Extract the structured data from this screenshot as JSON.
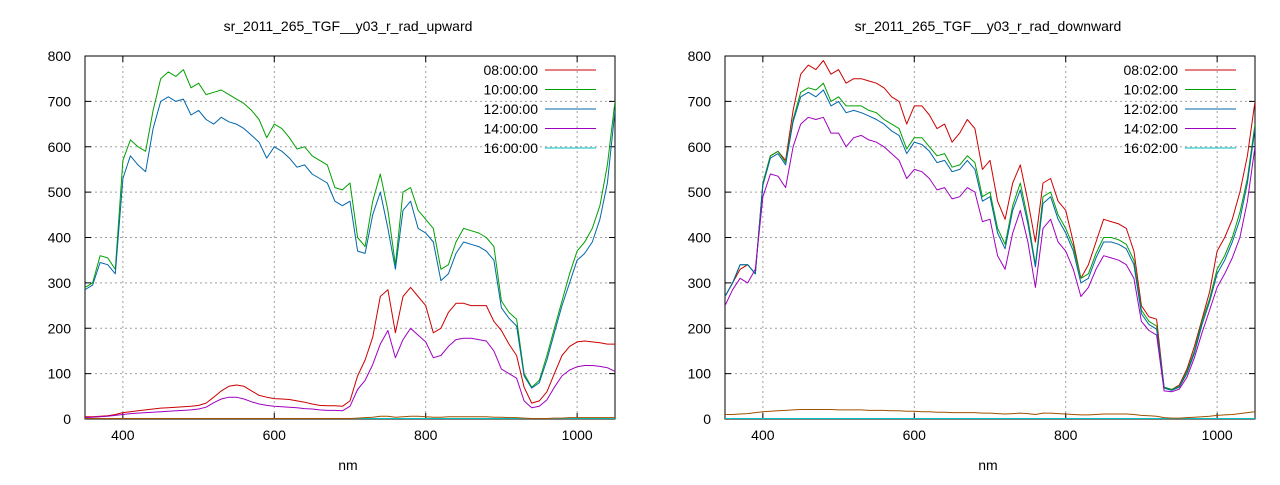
{
  "chart_data": [
    {
      "type": "line",
      "title": "sr_2011_265_TGF__y03_r_rad_upward",
      "xlabel": "nm",
      "ylabel": "",
      "xlim": [
        350,
        1050
      ],
      "ylim": [
        0,
        800
      ],
      "xticks": [
        400,
        600,
        800,
        1000
      ],
      "yticks": [
        0,
        100,
        200,
        300,
        400,
        500,
        600,
        700,
        800
      ],
      "grid": true,
      "legend_position": "top-right",
      "x": [
        350,
        360,
        370,
        380,
        390,
        400,
        410,
        420,
        430,
        440,
        450,
        460,
        470,
        480,
        490,
        500,
        510,
        520,
        530,
        540,
        550,
        560,
        570,
        580,
        590,
        600,
        610,
        620,
        630,
        640,
        650,
        660,
        670,
        680,
        690,
        700,
        710,
        720,
        730,
        740,
        750,
        760,
        770,
        780,
        790,
        800,
        810,
        820,
        830,
        840,
        850,
        860,
        870,
        880,
        890,
        900,
        910,
        920,
        930,
        940,
        950,
        960,
        970,
        980,
        990,
        1000,
        1010,
        1020,
        1030,
        1040,
        1050
      ],
      "series": [
        {
          "name": "08:00:00",
          "color": "#cc0000",
          "values": [
            5,
            5,
            6,
            7,
            10,
            14,
            16,
            18,
            20,
            22,
            24,
            25,
            26,
            27,
            28,
            30,
            35,
            48,
            62,
            72,
            75,
            72,
            62,
            52,
            48,
            45,
            44,
            43,
            40,
            37,
            33,
            30,
            29,
            29,
            28,
            40,
            95,
            130,
            180,
            270,
            285,
            190,
            270,
            290,
            270,
            250,
            190,
            200,
            235,
            255,
            255,
            250,
            250,
            250,
            215,
            195,
            165,
            140,
            70,
            35,
            40,
            60,
            100,
            140,
            160,
            170,
            172,
            170,
            168,
            165,
            165
          ]
        },
        {
          "name": "10:00:00",
          "color": "#00a000",
          "values": [
            290,
            300,
            360,
            355,
            330,
            570,
            615,
            600,
            590,
            680,
            750,
            765,
            755,
            770,
            730,
            740,
            715,
            720,
            725,
            715,
            705,
            695,
            680,
            660,
            620,
            650,
            640,
            620,
            595,
            600,
            580,
            570,
            560,
            510,
            505,
            520,
            400,
            380,
            480,
            540,
            460,
            340,
            500,
            510,
            460,
            440,
            420,
            330,
            340,
            390,
            420,
            415,
            410,
            400,
            380,
            260,
            235,
            220,
            100,
            70,
            85,
            140,
            200,
            260,
            320,
            370,
            390,
            420,
            470,
            560,
            700
          ]
        },
        {
          "name": "12:00:00",
          "color": "#0066aa",
          "values": [
            285,
            295,
            345,
            340,
            320,
            530,
            580,
            560,
            545,
            640,
            700,
            710,
            700,
            705,
            670,
            680,
            660,
            650,
            665,
            655,
            650,
            640,
            625,
            610,
            575,
            600,
            590,
            575,
            555,
            560,
            540,
            530,
            520,
            480,
            470,
            480,
            370,
            365,
            450,
            500,
            420,
            330,
            460,
            480,
            420,
            410,
            390,
            305,
            320,
            365,
            390,
            385,
            380,
            370,
            350,
            245,
            222,
            205,
            95,
            68,
            80,
            130,
            190,
            250,
            300,
            350,
            365,
            390,
            440,
            520,
            680
          ]
        },
        {
          "name": "14:00:00",
          "color": "#a000c0",
          "values": [
            3,
            4,
            5,
            6,
            8,
            10,
            12,
            13,
            14,
            15,
            16,
            17,
            18,
            19,
            20,
            22,
            26,
            36,
            44,
            48,
            48,
            44,
            38,
            33,
            30,
            28,
            27,
            26,
            25,
            23,
            22,
            20,
            19,
            19,
            18,
            28,
            65,
            85,
            120,
            165,
            195,
            135,
            175,
            200,
            185,
            170,
            135,
            140,
            160,
            175,
            178,
            178,
            175,
            172,
            150,
            110,
            100,
            90,
            40,
            25,
            28,
            42,
            70,
            95,
            108,
            115,
            118,
            118,
            116,
            113,
            105
          ]
        },
        {
          "name": "16:00:00",
          "color": "#00c0c0",
          "values": [
            1,
            1,
            1,
            1,
            1,
            1,
            1,
            1,
            1,
            1,
            1,
            1,
            1,
            1,
            1,
            1,
            1,
            1,
            1,
            1,
            1,
            1,
            1,
            1,
            1,
            1,
            1,
            1,
            1,
            1,
            1,
            1,
            1,
            1,
            1,
            1,
            1,
            1,
            1,
            1,
            1,
            1,
            1,
            1,
            1,
            1,
            1,
            1,
            1,
            1,
            1,
            1,
            1,
            1,
            1,
            1,
            1,
            1,
            1,
            1,
            1,
            1,
            1,
            1,
            1,
            1,
            1,
            1,
            1,
            1,
            1
          ]
        },
        {
          "name": "",
          "color": "#a05000",
          "values": [
            1,
            1,
            1,
            1,
            1,
            1,
            1,
            1,
            1,
            1,
            1,
            1,
            1,
            1,
            1,
            1,
            1,
            1,
            1,
            1,
            1,
            1,
            1,
            1,
            1,
            1,
            1,
            1,
            1,
            1,
            1,
            1,
            1,
            1,
            1,
            1,
            2,
            3,
            4,
            6,
            6,
            4,
            5,
            6,
            6,
            5,
            4,
            4,
            5,
            5,
            5,
            5,
            5,
            5,
            4,
            4,
            3,
            3,
            2,
            1,
            1,
            1,
            2,
            2,
            3,
            3,
            3,
            3,
            3,
            3,
            3
          ]
        }
      ]
    },
    {
      "type": "line",
      "title": "sr_2011_265_TGF__y03_r_rad_downward",
      "xlabel": "nm",
      "ylabel": "",
      "xlim": [
        350,
        1050
      ],
      "ylim": [
        0,
        800
      ],
      "xticks": [
        400,
        600,
        800,
        1000
      ],
      "yticks": [
        0,
        100,
        200,
        300,
        400,
        500,
        600,
        700,
        800
      ],
      "grid": true,
      "legend_position": "top-right",
      "x": [
        350,
        360,
        370,
        380,
        390,
        400,
        410,
        420,
        430,
        440,
        450,
        460,
        470,
        480,
        490,
        500,
        510,
        520,
        530,
        540,
        550,
        560,
        570,
        580,
        590,
        600,
        610,
        620,
        630,
        640,
        650,
        660,
        670,
        680,
        690,
        700,
        710,
        720,
        730,
        740,
        750,
        760,
        770,
        780,
        790,
        800,
        810,
        820,
        830,
        840,
        850,
        860,
        870,
        880,
        890,
        900,
        910,
        920,
        930,
        940,
        950,
        960,
        970,
        980,
        990,
        1000,
        1010,
        1020,
        1030,
        1040,
        1050
      ],
      "series": [
        {
          "name": "08:02:00",
          "color": "#cc0000",
          "values": [
            270,
            300,
            330,
            340,
            320,
            520,
            580,
            590,
            570,
            680,
            760,
            780,
            770,
            790,
            760,
            770,
            740,
            750,
            750,
            745,
            740,
            730,
            710,
            700,
            650,
            690,
            690,
            670,
            640,
            650,
            610,
            630,
            660,
            640,
            550,
            570,
            480,
            440,
            520,
            560,
            480,
            390,
            520,
            530,
            480,
            460,
            390,
            310,
            340,
            390,
            440,
            435,
            430,
            420,
            370,
            250,
            225,
            220,
            70,
            65,
            75,
            110,
            160,
            220,
            280,
            370,
            400,
            440,
            500,
            580,
            700
          ]
        },
        {
          "name": "10:02:00",
          "color": "#00a000",
          "values": [
            270,
            300,
            340,
            340,
            320,
            520,
            580,
            590,
            565,
            660,
            720,
            730,
            725,
            740,
            700,
            710,
            690,
            690,
            690,
            680,
            675,
            660,
            650,
            640,
            595,
            620,
            620,
            600,
            580,
            585,
            555,
            560,
            580,
            565,
            490,
            500,
            420,
            385,
            470,
            520,
            440,
            340,
            490,
            500,
            450,
            420,
            380,
            310,
            320,
            365,
            400,
            400,
            395,
            385,
            350,
            240,
            215,
            205,
            70,
            65,
            72,
            105,
            150,
            215,
            265,
            330,
            360,
            400,
            455,
            530,
            650
          ]
        },
        {
          "name": "12:02:00",
          "color": "#0066aa",
          "values": [
            270,
            300,
            340,
            340,
            320,
            515,
            575,
            585,
            560,
            655,
            710,
            720,
            710,
            725,
            690,
            700,
            675,
            680,
            675,
            668,
            660,
            650,
            635,
            625,
            585,
            610,
            605,
            590,
            565,
            570,
            545,
            550,
            570,
            550,
            480,
            490,
            410,
            375,
            460,
            505,
            430,
            335,
            475,
            490,
            440,
            410,
            370,
            300,
            310,
            355,
            390,
            390,
            385,
            375,
            340,
            232,
            208,
            198,
            68,
            63,
            70,
            100,
            145,
            208,
            258,
            320,
            350,
            390,
            440,
            520,
            640
          ]
        },
        {
          "name": "14:02:00",
          "color": "#a000c0",
          "values": [
            250,
            285,
            310,
            300,
            330,
            490,
            540,
            535,
            510,
            600,
            650,
            665,
            660,
            665,
            630,
            630,
            600,
            620,
            625,
            615,
            610,
            600,
            585,
            570,
            530,
            550,
            545,
            530,
            505,
            510,
            485,
            490,
            510,
            500,
            435,
            440,
            360,
            330,
            410,
            460,
            390,
            290,
            420,
            440,
            390,
            370,
            330,
            270,
            290,
            330,
            360,
            355,
            350,
            340,
            310,
            215,
            195,
            185,
            62,
            60,
            66,
            92,
            135,
            190,
            240,
            290,
            320,
            355,
            400,
            480,
            600
          ]
        },
        {
          "name": "16:02:00",
          "color": "#00c0c0",
          "values": [
            1,
            1,
            1,
            1,
            1,
            1,
            1,
            1,
            1,
            1,
            1,
            1,
            1,
            1,
            1,
            1,
            1,
            1,
            1,
            1,
            1,
            1,
            1,
            1,
            1,
            1,
            1,
            1,
            1,
            1,
            1,
            1,
            1,
            1,
            1,
            1,
            1,
            1,
            1,
            1,
            1,
            1,
            1,
            1,
            1,
            1,
            1,
            1,
            1,
            1,
            1,
            1,
            1,
            1,
            1,
            1,
            1,
            1,
            1,
            1,
            1,
            1,
            1,
            1,
            1,
            1,
            1,
            1,
            1,
            1,
            1
          ]
        },
        {
          "name": "",
          "color": "#a05000",
          "values": [
            10,
            10,
            11,
            12,
            14,
            16,
            17,
            18,
            19,
            20,
            21,
            21,
            21,
            21,
            21,
            20,
            20,
            20,
            20,
            19,
            19,
            19,
            18,
            18,
            17,
            17,
            16,
            16,
            15,
            15,
            14,
            14,
            14,
            14,
            13,
            13,
            12,
            11,
            12,
            13,
            12,
            10,
            13,
            13,
            12,
            11,
            10,
            9,
            9,
            10,
            11,
            11,
            11,
            11,
            10,
            8,
            7,
            6,
            3,
            2,
            2,
            3,
            4,
            5,
            6,
            8,
            9,
            10,
            12,
            14,
            16
          ]
        }
      ]
    }
  ]
}
